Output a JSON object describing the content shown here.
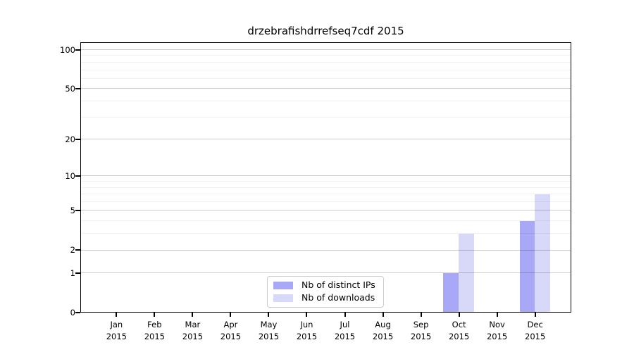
{
  "title": "drzebrafishdrrefseq7cdf 2015",
  "chart_data": {
    "type": "bar",
    "title": "drzebrafishdrrefseq7cdf 2015",
    "categories": [
      "Jan 2015",
      "Feb 2015",
      "Mar 2015",
      "Apr 2015",
      "May 2015",
      "Jun 2015",
      "Jul 2015",
      "Aug 2015",
      "Sep 2015",
      "Oct 2015",
      "Nov 2015",
      "Dec 2015"
    ],
    "series": [
      {
        "name": "Nb of distinct IPs",
        "color": "#a8a8f6",
        "values": [
          0,
          0,
          0,
          0,
          0,
          0,
          0,
          0,
          0,
          1,
          0,
          4
        ]
      },
      {
        "name": "Nb of downloads",
        "color": "#d8d8f9",
        "values": [
          0,
          0,
          0,
          0,
          0,
          0,
          0,
          0,
          0,
          3,
          0,
          7
        ]
      }
    ],
    "yscale": "log1p",
    "ylim": [
      0,
      114
    ],
    "yticks": [
      0,
      1,
      2,
      5,
      10,
      20,
      50,
      100
    ],
    "minor_gridlines": [
      3,
      4,
      6,
      7,
      8,
      9,
      30,
      40,
      60,
      70,
      80,
      90
    ],
    "grid": "horizontal",
    "legend_position": "lower center",
    "xlabel": "",
    "ylabel": ""
  },
  "colors": {
    "grid_major": "#cccccc",
    "grid_minor": "#f0f0f0",
    "axis": "#000000",
    "legend_border": "#cccccc",
    "background": "#ffffff"
  }
}
